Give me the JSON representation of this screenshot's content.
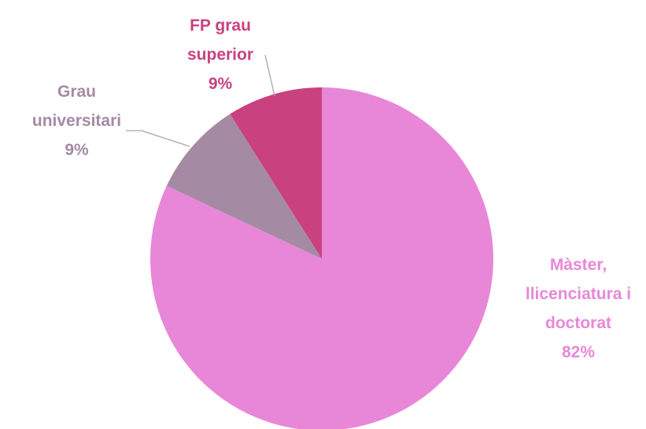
{
  "chart_data": {
    "type": "pie",
    "categories": [
      "Màster, llicenciatura i doctorat",
      "Grau universitari",
      "FP grau superior"
    ],
    "values": [
      82,
      9,
      9
    ],
    "value_labels": [
      "82%",
      "9%",
      "9%"
    ],
    "colors": [
      "#e887d8",
      "#a58aa4",
      "#c9417f"
    ]
  }
}
